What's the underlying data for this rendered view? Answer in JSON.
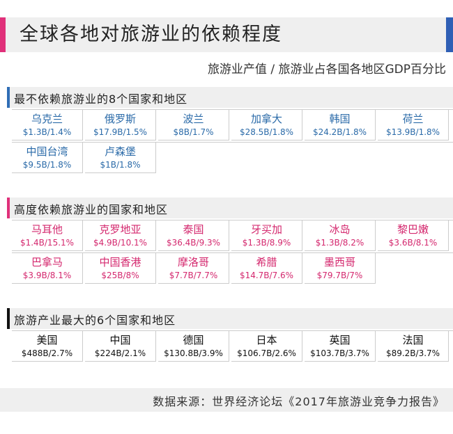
{
  "header": {
    "title": "全球各地对旅游业的依赖程度",
    "subtitle": "旅游业产值 / 旅游业占各国各地区GDP百分比"
  },
  "sections": [
    {
      "title": "最不依赖旅游业的8个国家和地区",
      "items": [
        {
          "name": "乌克兰",
          "value": "$1.3B/1.4%"
        },
        {
          "name": "俄罗斯",
          "value": "$17.9B/1.5%"
        },
        {
          "name": "波兰",
          "value": "$8B/1.7%"
        },
        {
          "name": "加拿大",
          "value": "$28.5B/1.8%"
        },
        {
          "name": "韩国",
          "value": "$24.2B/1.8%"
        },
        {
          "name": "荷兰",
          "value": "$13.9B/1.8%"
        },
        {
          "name": "中国台湾",
          "value": "$9.5B/1.8%"
        },
        {
          "name": "卢森堡",
          "value": "$1B/1.8%"
        }
      ]
    },
    {
      "title": "高度依赖旅游业的国家和地区",
      "items": [
        {
          "name": "马耳他",
          "value": "$1.4B/15.1%"
        },
        {
          "name": "克罗地亚",
          "value": "$4.9B/10.1%"
        },
        {
          "name": "泰国",
          "value": "$36.4B/9.3%"
        },
        {
          "name": "牙买加",
          "value": "$1.3B/8.9%"
        },
        {
          "name": "冰岛",
          "value": "$1.3B/8.2%"
        },
        {
          "name": "黎巴嫩",
          "value": "$3.6B/8.1%"
        },
        {
          "name": "巴拿马",
          "value": "$3.9B/8.1%"
        },
        {
          "name": "中国香港",
          "value": "$25B/8%"
        },
        {
          "name": "摩洛哥",
          "value": "$7.7B/7.7%"
        },
        {
          "name": "希腊",
          "value": "$14.7B/7.6%"
        },
        {
          "name": "墨西哥",
          "value": "$79.7B/7%"
        }
      ]
    },
    {
      "title": "旅游产业最大的6个国家和地区",
      "items": [
        {
          "name": "美国",
          "value": "$488B/2.7%"
        },
        {
          "name": "中国",
          "value": "$224B/2.1%"
        },
        {
          "name": "德国",
          "value": "$130.8B/3.9%"
        },
        {
          "name": "日本",
          "value": "$106.7B/2.6%"
        },
        {
          "name": "英国",
          "value": "$103.7B/3.7%"
        },
        {
          "name": "法国",
          "value": "$89.2B/3.7%"
        }
      ]
    }
  ],
  "footer": {
    "source": "数据来源：世界经济论坛《2017年旅游业竞争力报告》"
  }
}
